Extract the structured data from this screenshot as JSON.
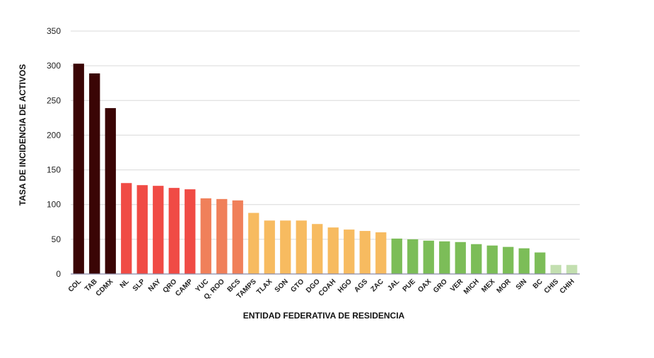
{
  "chart_data": {
    "type": "bar",
    "xlabel": "ENTIDAD FEDERATIVA DE RESIDENCIA",
    "ylabel": "TASA DE INCIDENCIA DE ACTIVOS",
    "ylim": [
      0,
      350
    ],
    "yticks": [
      0,
      50,
      100,
      150,
      200,
      250,
      300,
      350
    ],
    "grid": true,
    "legend": "none",
    "categories": [
      "COL",
      "TAB",
      "CDMX",
      "NL",
      "SLP",
      "NAY",
      "QRO",
      "CAMP",
      "YUC",
      "Q. ROO",
      "BCS",
      "TAMPS",
      "TLAX",
      "SON",
      "GTO",
      "DGO",
      "COAH",
      "HGO",
      "AGS",
      "ZAC",
      "JAL",
      "PUE",
      "OAX",
      "GRO",
      "VER",
      "MICH",
      "MEX",
      "MOR",
      "SIN",
      "BC",
      "CHIS",
      "CHIH"
    ],
    "values": [
      303,
      289,
      239,
      131,
      128,
      127,
      124,
      122,
      109,
      108,
      106,
      88,
      77,
      77,
      77,
      72,
      67,
      64,
      62,
      60,
      51,
      50,
      48,
      47,
      46,
      43,
      41,
      39,
      37,
      31,
      13,
      13
    ],
    "colors": [
      "#3a0505",
      "#3a0505",
      "#3a0505",
      "#f04b45",
      "#f04b45",
      "#f04b45",
      "#f04b45",
      "#f04b45",
      "#f0805a",
      "#f0805a",
      "#f0805a",
      "#f7bb60",
      "#f7bb60",
      "#f7bb60",
      "#f7bb60",
      "#f7bb60",
      "#f7bb60",
      "#f7bb60",
      "#f7bb60",
      "#f7bb60",
      "#7cbd58",
      "#7cbd58",
      "#7cbd58",
      "#7cbd58",
      "#7cbd58",
      "#7cbd58",
      "#7cbd58",
      "#7cbd58",
      "#7cbd58",
      "#7cbd58",
      "#c3dfb0",
      "#c3dfb0"
    ]
  }
}
